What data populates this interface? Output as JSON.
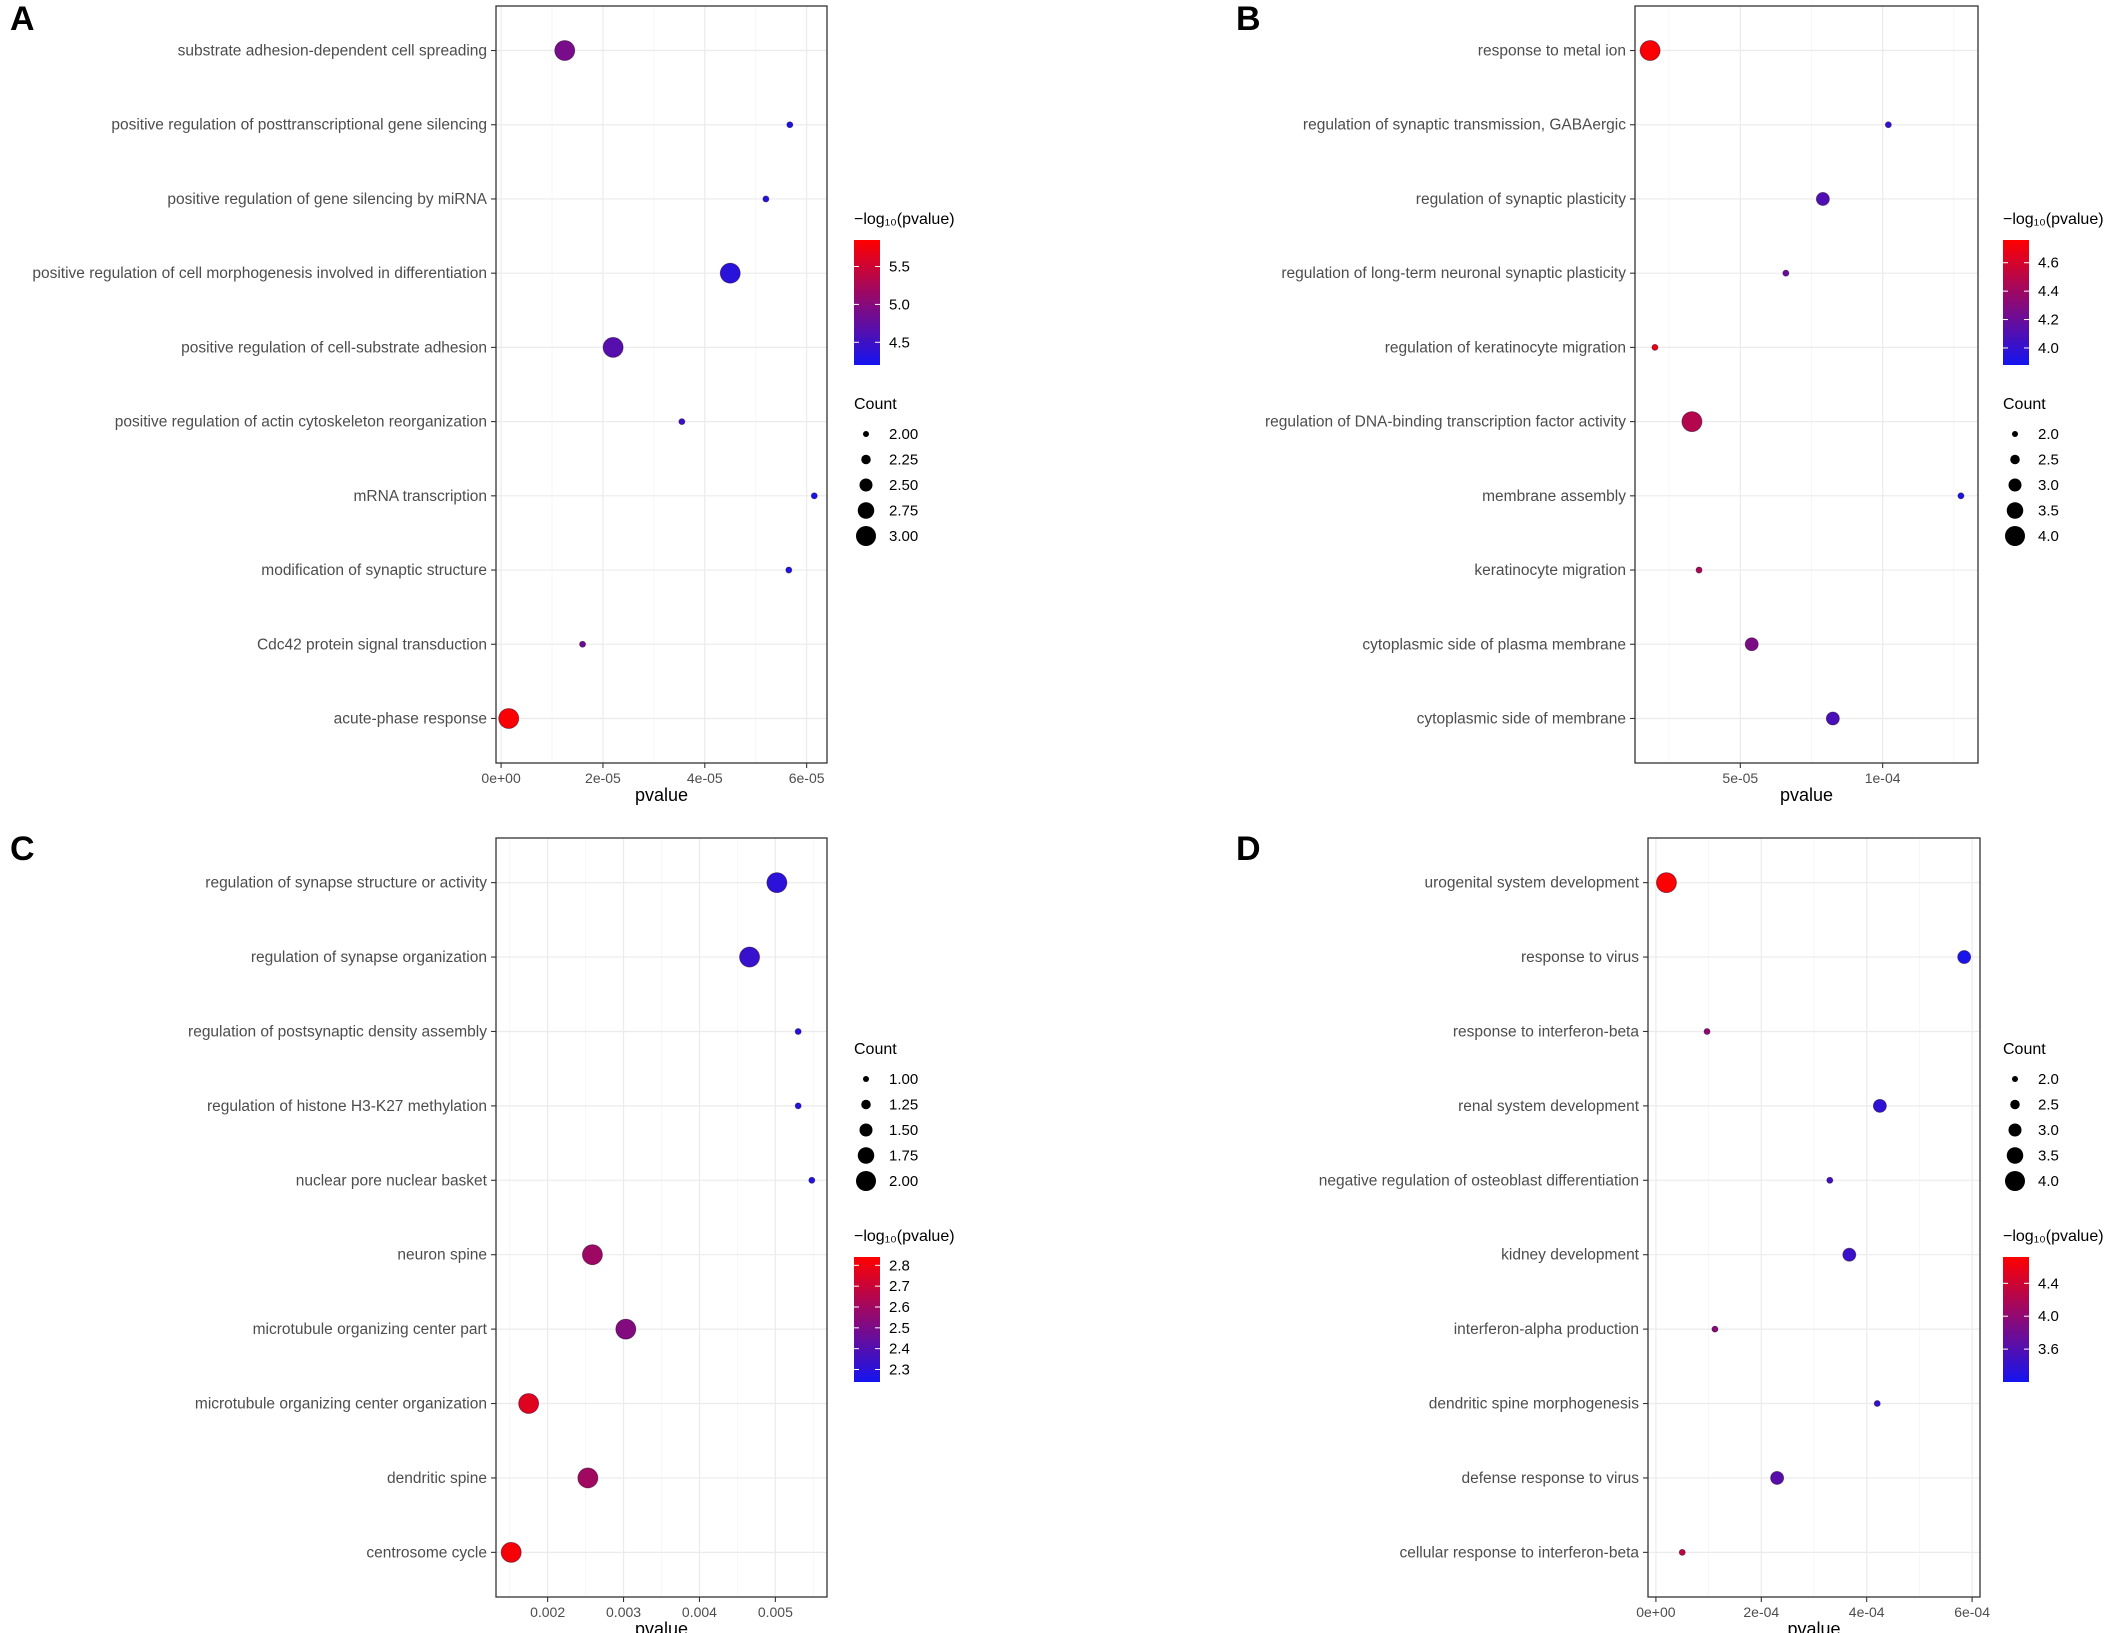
{
  "figure": {
    "legend_titles": {
      "pvalue": "−log₁₀(pvalue)",
      "count": "Count"
    }
  },
  "chart_data": [
    {
      "panel": "A",
      "type": "scatter",
      "xlabel": "pvalue",
      "xlim": [
        -1e-06,
        6.4e-05
      ],
      "xticks": [
        0,
        2e-05,
        4e-05,
        6e-05
      ],
      "xtick_labels": [
        "0e+00",
        "2e-05",
        "4e-05",
        "6e-05"
      ],
      "categories": [
        "substrate adhesion-dependent cell spreading",
        "positive regulation of posttranscriptional gene silencing",
        "positive regulation of gene silencing by miRNA",
        "positive regulation of cell morphogenesis involved in differentiation",
        "positive regulation of cell-substrate adhesion",
        "positive regulation of actin cytoskeleton reorganization",
        "mRNA transcription",
        "modification of synaptic structure",
        "Cdc42 protein signal transduction",
        "acute-phase response"
      ],
      "points": [
        {
          "term": "substrate adhesion-dependent cell spreading",
          "pvalue": 1.25e-05,
          "count": 3,
          "neglog10p": 4.9
        },
        {
          "term": "positive regulation of posttranscriptional gene silencing",
          "pvalue": 5.67e-05,
          "count": 2,
          "neglog10p": 4.25
        },
        {
          "term": "positive regulation of gene silencing by miRNA",
          "pvalue": 5.2e-05,
          "count": 2,
          "neglog10p": 4.28
        },
        {
          "term": "positive regulation of cell morphogenesis involved in differentiation",
          "pvalue": 4.5e-05,
          "count": 3,
          "neglog10p": 4.35
        },
        {
          "term": "positive regulation of cell-substrate adhesion",
          "pvalue": 2.2e-05,
          "count": 3,
          "neglog10p": 4.66
        },
        {
          "term": "positive regulation of actin cytoskeleton reorganization",
          "pvalue": 3.55e-05,
          "count": 2,
          "neglog10p": 4.45
        },
        {
          "term": "mRNA transcription",
          "pvalue": 6.15e-05,
          "count": 2,
          "neglog10p": 4.21
        },
        {
          "term": "modification of synaptic structure",
          "pvalue": 5.65e-05,
          "count": 2,
          "neglog10p": 4.25
        },
        {
          "term": "Cdc42 protein signal transduction",
          "pvalue": 1.6e-05,
          "count": 2,
          "neglog10p": 4.8
        },
        {
          "term": "acute-phase response",
          "pvalue": 1.5e-06,
          "count": 3,
          "neglog10p": 5.82
        }
      ],
      "legend_order": [
        "pvalue",
        "count"
      ],
      "color_scale": {
        "min": 4.2,
        "max": 5.85,
        "breaks": [
          5.5,
          5.0,
          4.5
        ],
        "break_labels": [
          "5.5",
          "5.0",
          "4.5"
        ]
      },
      "size_scale": {
        "min": 2,
        "max": 3,
        "breaks": [
          2.0,
          2.25,
          2.5,
          2.75,
          3.0
        ],
        "break_labels": [
          "2.00",
          "2.25",
          "2.50",
          "2.75",
          "3.00"
        ]
      }
    },
    {
      "panel": "B",
      "type": "scatter",
      "xlabel": "pvalue",
      "xlim": [
        1.3e-05,
        0.0001335
      ],
      "xticks": [
        5e-05,
        0.0001
      ],
      "xtick_labels": [
        "5e-05",
        "1e-04"
      ],
      "categories": [
        "response to metal ion",
        "regulation of synaptic transmission, GABAergic",
        "regulation of synaptic plasticity",
        "regulation of long-term neuronal synaptic plasticity",
        "regulation of keratinocyte migration",
        "regulation of DNA-binding transcription factor activity",
        "membrane assembly",
        "keratinocyte migration",
        "cytoplasmic side of plasma membrane",
        "cytoplasmic side of membrane"
      ],
      "points": [
        {
          "term": "response to metal ion",
          "pvalue": 1.83e-05,
          "count": 4,
          "neglog10p": 4.74
        },
        {
          "term": "regulation of synaptic transmission, GABAergic",
          "pvalue": 0.000102,
          "count": 2,
          "neglog10p": 3.99
        },
        {
          "term": "regulation of synaptic plasticity",
          "pvalue": 7.9e-05,
          "count": 3,
          "neglog10p": 4.1
        },
        {
          "term": "regulation of long-term neuronal synaptic plasticity",
          "pvalue": 6.6e-05,
          "count": 2,
          "neglog10p": 4.18
        },
        {
          "term": "regulation of keratinocyte migration",
          "pvalue": 2e-05,
          "count": 2,
          "neglog10p": 4.7
        },
        {
          "term": "regulation of DNA-binding transcription factor activity",
          "pvalue": 3.3e-05,
          "count": 4,
          "neglog10p": 4.48
        },
        {
          "term": "membrane assembly",
          "pvalue": 0.0001275,
          "count": 2,
          "neglog10p": 3.89
        },
        {
          "term": "keratinocyte migration",
          "pvalue": 3.55e-05,
          "count": 2,
          "neglog10p": 4.45
        },
        {
          "term": "cytoplasmic side of plasma membrane",
          "pvalue": 5.4e-05,
          "count": 3,
          "neglog10p": 4.27
        },
        {
          "term": "cytoplasmic side of membrane",
          "pvalue": 8.25e-05,
          "count": 3,
          "neglog10p": 4.08
        }
      ],
      "legend_order": [
        "pvalue",
        "count"
      ],
      "color_scale": {
        "min": 3.88,
        "max": 4.76,
        "breaks": [
          4.6,
          4.4,
          4.2,
          4.0
        ],
        "break_labels": [
          "4.6",
          "4.4",
          "4.2",
          "4.0"
        ]
      },
      "size_scale": {
        "min": 2,
        "max": 4,
        "breaks": [
          2.0,
          2.5,
          3.0,
          3.5,
          4.0
        ],
        "break_labels": [
          "2.0",
          "2.5",
          "3.0",
          "3.5",
          "4.0"
        ]
      }
    },
    {
      "panel": "C",
      "type": "scatter",
      "xlabel": "pvalue",
      "xlim": [
        0.00132,
        0.00568
      ],
      "xticks": [
        0.002,
        0.003,
        0.004,
        0.005
      ],
      "xtick_labels": [
        "0.002",
        "0.003",
        "0.004",
        "0.005"
      ],
      "categories": [
        "regulation of synapse structure or activity",
        "regulation of synapse organization",
        "regulation of postsynaptic density assembly",
        "regulation of histone H3-K27 methylation",
        "nuclear pore nuclear basket",
        "neuron spine",
        "microtubule organizing center part",
        "microtubule organizing center organization",
        "dendritic spine",
        "centrosome cycle"
      ],
      "points": [
        {
          "term": "regulation of synapse structure or activity",
          "pvalue": 0.00502,
          "count": 2,
          "neglog10p": 2.3
        },
        {
          "term": "regulation of synapse organization",
          "pvalue": 0.00466,
          "count": 2,
          "neglog10p": 2.33
        },
        {
          "term": "regulation of postsynaptic density assembly",
          "pvalue": 0.0053,
          "count": 1,
          "neglog10p": 2.28
        },
        {
          "term": "regulation of histone H3-K27 methylation",
          "pvalue": 0.0053,
          "count": 1,
          "neglog10p": 2.28
        },
        {
          "term": "nuclear pore nuclear basket",
          "pvalue": 0.00548,
          "count": 1,
          "neglog10p": 2.26
        },
        {
          "term": "neuron spine",
          "pvalue": 0.00259,
          "count": 2,
          "neglog10p": 2.59
        },
        {
          "term": "microtubule organizing center part",
          "pvalue": 0.00303,
          "count": 2,
          "neglog10p": 2.52
        },
        {
          "term": "microtubule organizing center organization",
          "pvalue": 0.00175,
          "count": 2,
          "neglog10p": 2.76
        },
        {
          "term": "dendritic spine",
          "pvalue": 0.00253,
          "count": 2,
          "neglog10p": 2.6
        },
        {
          "term": "centrosome cycle",
          "pvalue": 0.00152,
          "count": 2,
          "neglog10p": 2.82
        }
      ],
      "legend_order": [
        "count",
        "pvalue"
      ],
      "color_scale": {
        "min": 2.24,
        "max": 2.84,
        "breaks": [
          2.8,
          2.7,
          2.6,
          2.5,
          2.4,
          2.3
        ],
        "break_labels": [
          "2.8",
          "2.7",
          "2.6",
          "2.5",
          "2.4",
          "2.3"
        ]
      },
      "size_scale": {
        "min": 1,
        "max": 2,
        "breaks": [
          1.0,
          1.25,
          1.5,
          1.75,
          2.0
        ],
        "break_labels": [
          "1.00",
          "1.25",
          "1.50",
          "1.75",
          "2.00"
        ]
      }
    },
    {
      "panel": "D",
      "type": "scatter",
      "xlabel": "pvalue",
      "xlim": [
        -1.5e-05,
        0.000615
      ],
      "xticks": [
        0,
        0.0002,
        0.0004,
        0.0006
      ],
      "xtick_labels": [
        "0e+00",
        "2e-04",
        "4e-04",
        "6e-04"
      ],
      "categories": [
        "urogenital system development",
        "response to virus",
        "response to interferon-beta",
        "renal system development",
        "negative regulation of osteoblast differentiation",
        "kidney development",
        "interferon-alpha production",
        "dendritic spine morphogenesis",
        "defense response to virus",
        "cellular response to interferon-beta"
      ],
      "points": [
        {
          "term": "urogenital system development",
          "pvalue": 2e-05,
          "count": 4,
          "neglog10p": 4.7
        },
        {
          "term": "response to virus",
          "pvalue": 0.000585,
          "count": 3,
          "neglog10p": 3.23
        },
        {
          "term": "response to interferon-beta",
          "pvalue": 9.7e-05,
          "count": 2,
          "neglog10p": 4.01
        },
        {
          "term": "renal system development",
          "pvalue": 0.000425,
          "count": 3,
          "neglog10p": 3.37
        },
        {
          "term": "negative regulation of osteoblast differentiation",
          "pvalue": 0.00033,
          "count": 2,
          "neglog10p": 3.48
        },
        {
          "term": "kidney development",
          "pvalue": 0.000367,
          "count": 3,
          "neglog10p": 3.44
        },
        {
          "term": "interferon-alpha production",
          "pvalue": 0.000112,
          "count": 2,
          "neglog10p": 3.95
        },
        {
          "term": "dendritic spine morphogenesis",
          "pvalue": 0.00042,
          "count": 2,
          "neglog10p": 3.38
        },
        {
          "term": "defense response to virus",
          "pvalue": 0.00023,
          "count": 3,
          "neglog10p": 3.64
        },
        {
          "term": "cellular response to interferon-beta",
          "pvalue": 5e-05,
          "count": 2,
          "neglog10p": 4.3
        }
      ],
      "legend_order": [
        "count",
        "pvalue"
      ],
      "color_scale": {
        "min": 3.2,
        "max": 4.72,
        "breaks": [
          4.4,
          4.0,
          3.6
        ],
        "break_labels": [
          "4.4",
          "4.0",
          "3.6"
        ]
      },
      "size_scale": {
        "min": 2,
        "max": 4,
        "breaks": [
          2.0,
          2.5,
          3.0,
          3.5,
          4.0
        ],
        "break_labels": [
          "2.0",
          "2.5",
          "3.0",
          "3.5",
          "4.0"
        ]
      }
    }
  ]
}
